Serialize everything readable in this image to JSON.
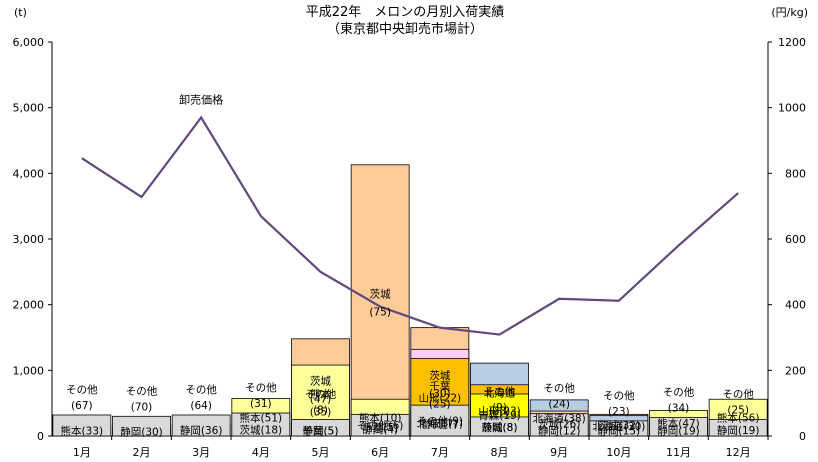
{
  "chart_data": {
    "type": "bar",
    "stacked": true,
    "title": "平成22年　メロンの月別入荷実績",
    "subtitle": "（東京都中央卸売市場計）",
    "y_left_unit": "(t)",
    "y_right_unit": "(円/kg)",
    "y_left_ticks": [
      "0",
      "1,000",
      "2,000",
      "3,000",
      "4,000",
      "5,000",
      "6,000"
    ],
    "y_right_ticks": [
      "0",
      "200",
      "400",
      "600",
      "800",
      "1000",
      "1200"
    ],
    "ylim_left": [
      0,
      6000
    ],
    "ylim_right": [
      0,
      1200
    ],
    "categories": [
      "1月",
      "2月",
      "3月",
      "4月",
      "5月",
      "6月",
      "7月",
      "8月",
      "9月",
      "10月",
      "11月",
      "12月"
    ],
    "colors": {
      "熊本": "#ffff99",
      "静岡": "#ccffff",
      "茨城": "#ffcc99",
      "千葉": "#ffccff",
      "山形": "#ffc000",
      "青森": "#ffff00",
      "北海道": "#b8cce4",
      "その他": "#d9d9d9",
      "line": "#604a7b",
      "edge": "#000000"
    },
    "stacks": [
      {
        "month": "1月",
        "segments": [
          {
            "name": "熊本",
            "value": 160,
            "label": "熊本(33)"
          },
          {
            "name": "その他",
            "value": 320,
            "label": "その他",
            "sublabel": "(67)",
            "outside": true
          }
        ]
      },
      {
        "month": "2月",
        "segments": [
          {
            "name": "静岡",
            "value": 130,
            "label": "静岡(30)"
          },
          {
            "name": "その他",
            "value": 300,
            "label": "その他",
            "sublabel": "(70)",
            "outside": true
          }
        ]
      },
      {
        "month": "3月",
        "segments": [
          {
            "name": "静岡",
            "value": 180,
            "label": "静岡(36)"
          },
          {
            "name": "その他",
            "value": 320,
            "label": "その他",
            "sublabel": "(64)",
            "outside": true
          }
        ]
      },
      {
        "month": "4月",
        "segments": [
          {
            "name": "熊本",
            "value": 570,
            "label": "熊本(51)"
          },
          {
            "name": "茨城",
            "value": 200,
            "label": "茨城(18)"
          },
          {
            "name": "その他",
            "value": 350,
            "label": "その他",
            "sublabel": "(31)",
            "outside": true
          }
        ]
      },
      {
        "month": "5月",
        "segments": [
          {
            "name": "茨城",
            "value": 1480,
            "label": "茨城",
            "sublabel": "(47)"
          },
          {
            "name": "熊本",
            "value": 1080,
            "label": "熊本",
            "sublabel": "(35)"
          },
          {
            "name": "静岡",
            "value": 160,
            "label": "静岡(5)"
          },
          {
            "name": "千葉",
            "value": 160,
            "label": "千葉(5)"
          },
          {
            "name": "その他",
            "value": 250,
            "label": "その他",
            "sublabel": "(8)",
            "outside": true
          }
        ]
      },
      {
        "month": "6月",
        "segments": [
          {
            "name": "茨城",
            "value": 4130,
            "label": "茨城",
            "sublabel": "(75)"
          },
          {
            "name": "熊本",
            "value": 560,
            "label": "熊本(10)"
          },
          {
            "name": "千葉",
            "value": 270,
            "label": "千葉(5)"
          },
          {
            "name": "静岡",
            "value": 220,
            "label": "静岡(4)"
          },
          {
            "name": "その他",
            "value": 330,
            "label": "その他(6)"
          }
        ]
      },
      {
        "month": "7月",
        "segments": [
          {
            "name": "茨城",
            "value": 1650,
            "label": "茨城",
            "sublabel": "(30)"
          },
          {
            "name": "千葉",
            "value": 1320,
            "label": "千葉",
            "sublabel": "(25)"
          },
          {
            "name": "山形",
            "value": 1180,
            "label": "山形(22)"
          },
          {
            "name": "北海道",
            "value": 380,
            "label": "北海道(7)"
          },
          {
            "name": "静岡",
            "value": 380,
            "label": "静岡(7)"
          },
          {
            "name": "その他",
            "value": 470,
            "label": "その他(9)"
          }
        ]
      },
      {
        "month": "8月",
        "segments": [
          {
            "name": "北海道",
            "value": 1110,
            "label": "北海道",
            "sublabel": "(33)"
          },
          {
            "name": "山形",
            "value": 780,
            "label": "山形(23)"
          },
          {
            "name": "青森",
            "value": 640,
            "label": "青森(19)"
          },
          {
            "name": "茨城",
            "value": 270,
            "label": "茨城(8)"
          },
          {
            "name": "静岡",
            "value": 270,
            "label": "静岡(8)"
          },
          {
            "name": "その他",
            "value": 290,
            "label": "その他",
            "sublabel": "(9)",
            "outside": true
          }
        ]
      },
      {
        "month": "9月",
        "segments": [
          {
            "name": "北海道",
            "value": 550,
            "label": "北海道(38)"
          },
          {
            "name": "茨城",
            "value": 380,
            "label": "茨城(26)"
          },
          {
            "name": "静岡",
            "value": 170,
            "label": "静岡(12)"
          },
          {
            "name": "その他",
            "value": 340,
            "label": "その他",
            "sublabel": "(24)",
            "outside": true
          }
        ]
      },
      {
        "month": "10月",
        "segments": [
          {
            "name": "茨城",
            "value": 330,
            "label": "茨城(32)"
          },
          {
            "name": "北海道",
            "value": 310,
            "label": "北海道(30)"
          },
          {
            "name": "静岡",
            "value": 160,
            "label": "静岡(15)"
          },
          {
            "name": "その他",
            "value": 230,
            "label": "その他",
            "sublabel": "(23)",
            "outside": true
          }
        ]
      },
      {
        "month": "11月",
        "segments": [
          {
            "name": "熊本",
            "value": 390,
            "label": "熊本(47)"
          },
          {
            "name": "静岡",
            "value": 160,
            "label": "静岡(19)"
          },
          {
            "name": "その他",
            "value": 280,
            "label": "その他",
            "sublabel": "(34)",
            "outside": true
          }
        ]
      },
      {
        "month": "12月",
        "segments": [
          {
            "name": "熊本",
            "value": 560,
            "label": "熊本(56)"
          },
          {
            "name": "静岡",
            "value": 190,
            "label": "静岡(19)"
          },
          {
            "name": "その他",
            "value": 250,
            "label": "その他",
            "sublabel": "(25)",
            "outside": true
          }
        ]
      }
    ],
    "price_series": {
      "name": "卸売価格",
      "unit": "円/kg",
      "values": [
        846,
        728,
        970,
        670,
        500,
        394,
        330,
        309,
        418,
        412,
        580,
        740
      ]
    }
  }
}
